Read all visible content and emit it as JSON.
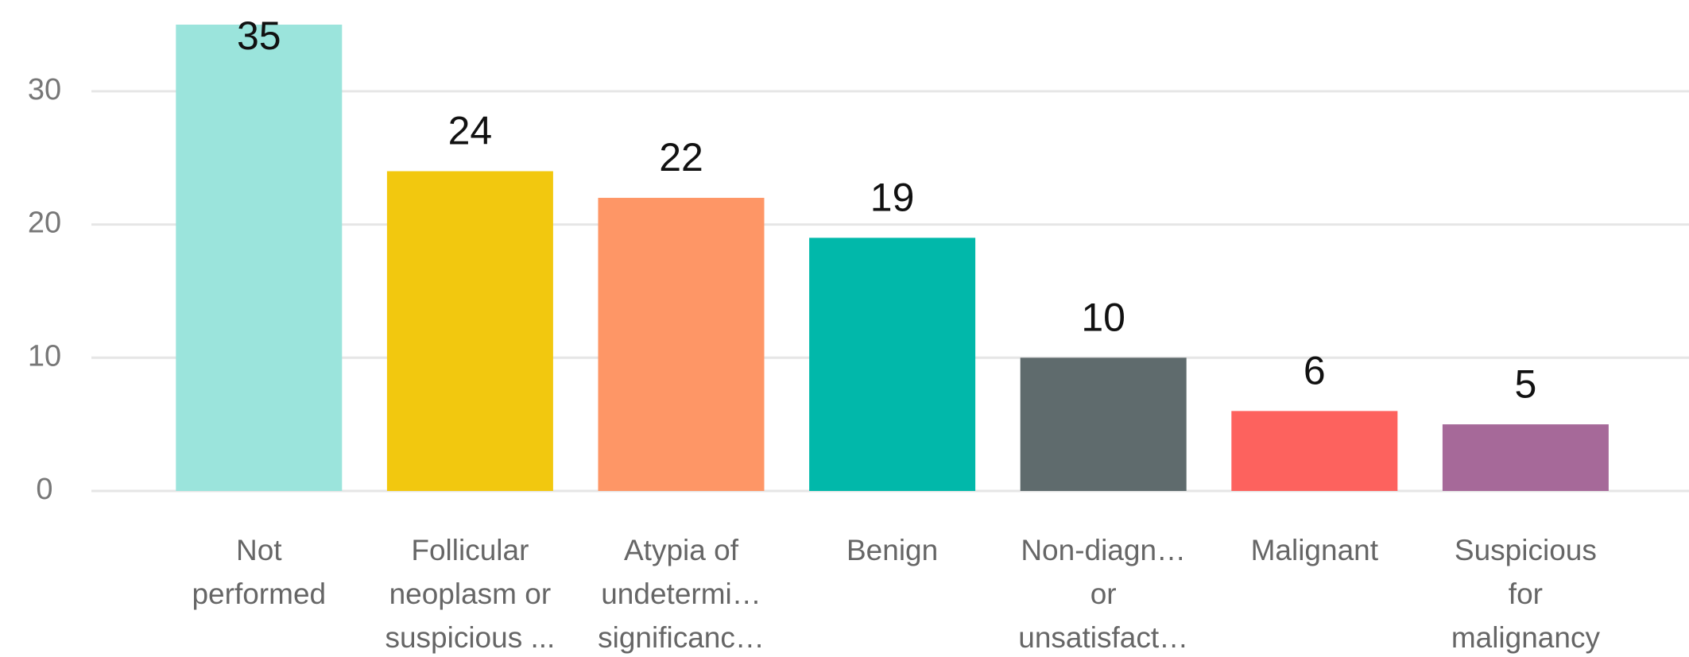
{
  "chart_data": {
    "type": "bar",
    "categories": [
      "Not performed",
      "Follicular neoplasm or suspicious ...",
      "Atypia of undetermi… significanc…",
      "Benign",
      "Non-diagn… or unsatisfact…",
      "Malignant",
      "Suspicious for malignancy"
    ],
    "values": [
      35,
      24,
      22,
      19,
      10,
      6,
      5
    ],
    "colors": [
      "#9be4dc",
      "#f2c80f",
      "#fe9666",
      "#01b8aa",
      "#5f6b6d",
      "#fd625e",
      "#a66999"
    ],
    "ylim": [
      0,
      35
    ],
    "yticks": [
      0,
      10,
      20,
      30
    ],
    "grid": true
  }
}
